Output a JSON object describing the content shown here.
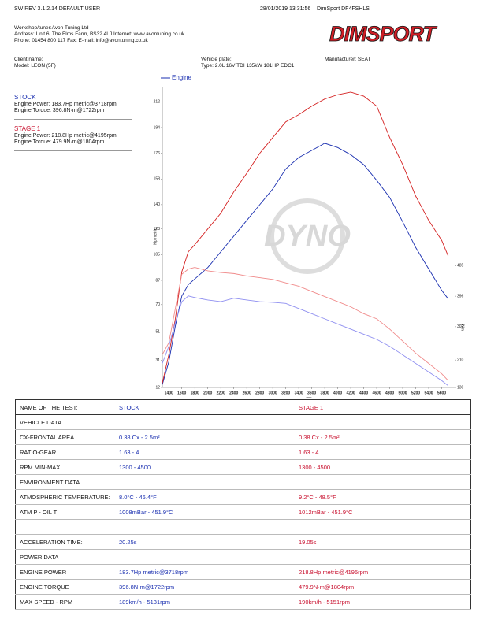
{
  "header": {
    "software": "SW REV 3.1.2.14  DEFAULT USER",
    "datetime": "28/01/2019 13:31:56",
    "device": "DimSport DF4FSHLS",
    "logo": "DIMSPORT"
  },
  "workshop": [
    "Workshop/tuner:Avon Tuning Ltd",
    "Address: Unit 6, The Elms Farm, BS32 4LJ Internet: www.avontuning.co.uk",
    "Phone: 01454 800 117 Fax:  E-mail: info@avontuning.co.uk"
  ],
  "vehicle": {
    "client": "Client name:",
    "model": "Model: LEON (5F)",
    "plate": "Vehicle plate:",
    "type": "Type: 2.0L 16V TDI 135kW 181HP EDC1",
    "manufacturer": "Manufacturer: SEAT"
  },
  "summary": [
    {
      "title": "STOCK",
      "power": "Engine Power: 183.7Hp metric@3718rpm",
      "torque": "Engine Torque: 396.8N·m@1722rpm"
    },
    {
      "title": "STAGE 1",
      "power": "Engine Power: 218.8Hp metric@4195rpm",
      "torque": "Engine Torque: 479.9N·m@1804rpm"
    }
  ],
  "chart_data": {
    "type": "line",
    "legend_label": "Engine",
    "watermark": "DYNO",
    "y_label": "Hp metric",
    "y2_label": "Nm",
    "x_label": "rpm",
    "x": [
      1300,
      1400,
      1500,
      1600,
      1700,
      1800,
      2000,
      2200,
      2400,
      2600,
      2800,
      3000,
      3200,
      3400,
      3600,
      3800,
      4000,
      4200,
      4400,
      4600,
      4800,
      5000,
      5200,
      5400,
      5600,
      5700
    ],
    "xlim": [
      1300,
      5800
    ],
    "xticks": [
      1400,
      1600,
      1800,
      2000,
      2200,
      2400,
      2600,
      2800,
      3000,
      3200,
      3400,
      3600,
      3800,
      4000,
      4200,
      4400,
      4600,
      4800,
      5000,
      5200,
      5400,
      5600
    ],
    "ylim": [
      12,
      221
    ],
    "yticks": [
      12,
      31,
      51,
      70,
      87,
      105,
      123,
      140,
      158,
      176,
      194,
      212
    ],
    "y2lim": [
      130,
      1000
    ],
    "y2ticks": [
      130,
      210,
      307,
      396,
      485
    ],
    "series": [
      {
        "color": "#1a2fb0",
        "values": [
          14,
          30,
          55,
          76,
          84,
          88,
          96,
          107,
          118,
          129,
          140,
          151,
          165,
          173,
          178,
          183,
          180,
          175,
          168,
          157,
          145,
          128,
          110,
          95,
          80,
          74
        ]
      },
      {
        "color": "#d42020",
        "values": [
          15,
          35,
          60,
          93,
          107,
          112,
          123,
          134,
          149,
          162,
          176,
          187,
          198,
          203,
          209,
          214,
          217,
          218.8,
          216,
          209,
          187,
          168,
          146,
          129,
          115,
          104
        ]
      },
      {
        "color": "#8f8ff0",
        "axis": "y2",
        "values": [
          200,
          250,
          320,
          380,
          396.8,
          392,
          385,
          380,
          390,
          385,
          380,
          378,
          375,
          360,
          345,
          330,
          315,
          300,
          285,
          270,
          250,
          225,
          200,
          175,
          150,
          135
        ]
      },
      {
        "color": "#f08a8a",
        "axis": "y2",
        "values": [
          226,
          260,
          360,
          460,
          475,
          479.9,
          470,
          465,
          462,
          455,
          450,
          445,
          435,
          425,
          410,
          395,
          380,
          365,
          345,
          330,
          300,
          265,
          230,
          200,
          170,
          150
        ]
      }
    ]
  },
  "table": {
    "header": [
      "NAME OF THE TEST:",
      "STOCK",
      "STAGE 1"
    ],
    "rows": [
      [
        "VEHICLE DATA"
      ],
      [
        "CX-FRONTAL AREA",
        "0.38 Cx - 2.5m²",
        "0.38 Cx - 2.5m²"
      ],
      [
        "RATIO-GEAR",
        "1.63 - 4",
        "1.63 - 4"
      ],
      [
        "RPM MIN-MAX",
        "1300 - 4500",
        "1300 - 4500"
      ],
      [
        "ENVIRONMENT DATA"
      ],
      [
        "ATMOSPHERIC TEMPERATURE:",
        "8.0°C - 46.4°F",
        "9.2°C - 48.5°F"
      ],
      [
        "ATM P - OIL T",
        "1008mBar - 451.9°C",
        "1012mBar - 451.9°C"
      ],
      [],
      [
        "ACCELERATION TIME:",
        "20.25s",
        "19.05s"
      ],
      [
        "POWER DATA"
      ],
      [
        "ENGINE POWER",
        "183.7Hp metric@3718rpm",
        "218.8Hp metric@4195rpm"
      ],
      [
        "ENGINE TORQUE",
        "396.8N·m@1722rpm",
        "479.9N·m@1804rpm"
      ],
      [
        "MAX SPEED - RPM",
        "189km/h - 5131rpm",
        "190km/h - 5151rpm"
      ]
    ]
  }
}
